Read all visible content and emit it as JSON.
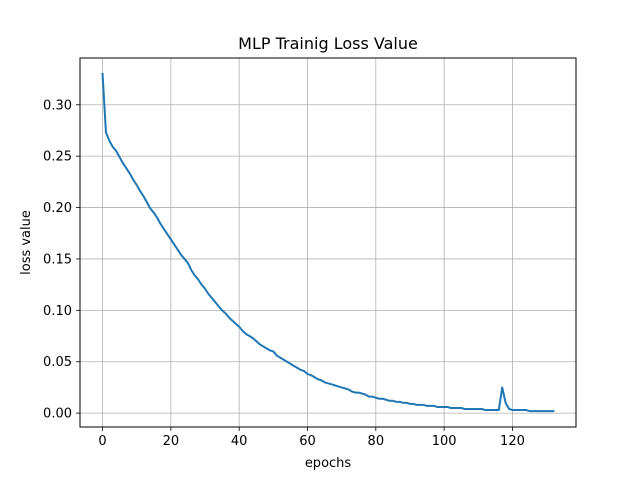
{
  "chart_data": {
    "type": "line",
    "title": "MLP Trainig Loss Value",
    "xlabel": "epochs",
    "ylabel": "loss value",
    "xlim": [
      -6.6,
      138.6
    ],
    "ylim": [
      -0.0135,
      0.3455
    ],
    "xticks": [
      0,
      20,
      40,
      60,
      80,
      100,
      120
    ],
    "xtick_labels": [
      "0",
      "20",
      "40",
      "60",
      "80",
      "100",
      "120"
    ],
    "yticks": [
      0.0,
      0.05,
      0.1,
      0.15,
      0.2,
      0.25,
      0.3
    ],
    "ytick_labels": [
      "0.00",
      "0.05",
      "0.10",
      "0.15",
      "0.20",
      "0.25",
      "0.30"
    ],
    "grid": true,
    "series": [
      {
        "color": "#1f77b4",
        "x": [
          0,
          1,
          2,
          3,
          4,
          5,
          6,
          7,
          8,
          9,
          10,
          11,
          12,
          13,
          14,
          15,
          16,
          17,
          18,
          19,
          20,
          21,
          22,
          23,
          24,
          25,
          26,
          27,
          28,
          29,
          30,
          31,
          32,
          33,
          34,
          35,
          36,
          37,
          38,
          39,
          40,
          41,
          42,
          43,
          44,
          45,
          46,
          47,
          48,
          49,
          50,
          51,
          52,
          53,
          54,
          55,
          56,
          57,
          58,
          59,
          60,
          61,
          62,
          63,
          64,
          65,
          66,
          67,
          68,
          69,
          70,
          71,
          72,
          73,
          74,
          75,
          76,
          77,
          78,
          79,
          80,
          81,
          82,
          83,
          84,
          85,
          86,
          87,
          88,
          89,
          90,
          91,
          92,
          93,
          94,
          95,
          96,
          97,
          98,
          99,
          100,
          101,
          102,
          103,
          104,
          105,
          106,
          107,
          108,
          109,
          110,
          111,
          112,
          113,
          114,
          115,
          116,
          117,
          118,
          119,
          120,
          121,
          122,
          123,
          124,
          125,
          126,
          127,
          128,
          129,
          130,
          131,
          132
        ],
        "y": [
          0.33,
          0.273,
          0.265,
          0.259,
          0.255,
          0.249,
          0.243,
          0.238,
          0.233,
          0.227,
          0.222,
          0.216,
          0.211,
          0.205,
          0.199,
          0.195,
          0.19,
          0.184,
          0.179,
          0.174,
          0.169,
          0.164,
          0.159,
          0.154,
          0.15,
          0.146,
          0.139,
          0.134,
          0.13,
          0.125,
          0.121,
          0.116,
          0.112,
          0.108,
          0.104,
          0.1,
          0.097,
          0.093,
          0.09,
          0.087,
          0.084,
          0.08,
          0.077,
          0.075,
          0.073,
          0.07,
          0.067,
          0.065,
          0.063,
          0.061,
          0.06,
          0.056,
          0.054,
          0.052,
          0.05,
          0.048,
          0.046,
          0.044,
          0.042,
          0.041,
          0.038,
          0.037,
          0.035,
          0.033,
          0.032,
          0.03,
          0.029,
          0.028,
          0.027,
          0.026,
          0.025,
          0.024,
          0.023,
          0.021,
          0.02,
          0.02,
          0.019,
          0.018,
          0.016,
          0.016,
          0.015,
          0.014,
          0.014,
          0.013,
          0.012,
          0.012,
          0.011,
          0.011,
          0.01,
          0.01,
          0.009,
          0.009,
          0.008,
          0.008,
          0.008,
          0.007,
          0.007,
          0.007,
          0.006,
          0.006,
          0.006,
          0.006,
          0.005,
          0.005,
          0.005,
          0.005,
          0.004,
          0.004,
          0.004,
          0.004,
          0.004,
          0.004,
          0.003,
          0.003,
          0.003,
          0.003,
          0.003,
          0.025,
          0.01,
          0.004,
          0.003,
          0.003,
          0.003,
          0.003,
          0.003,
          0.002,
          0.002,
          0.002,
          0.002,
          0.002,
          0.002,
          0.002,
          0.002
        ]
      }
    ]
  }
}
